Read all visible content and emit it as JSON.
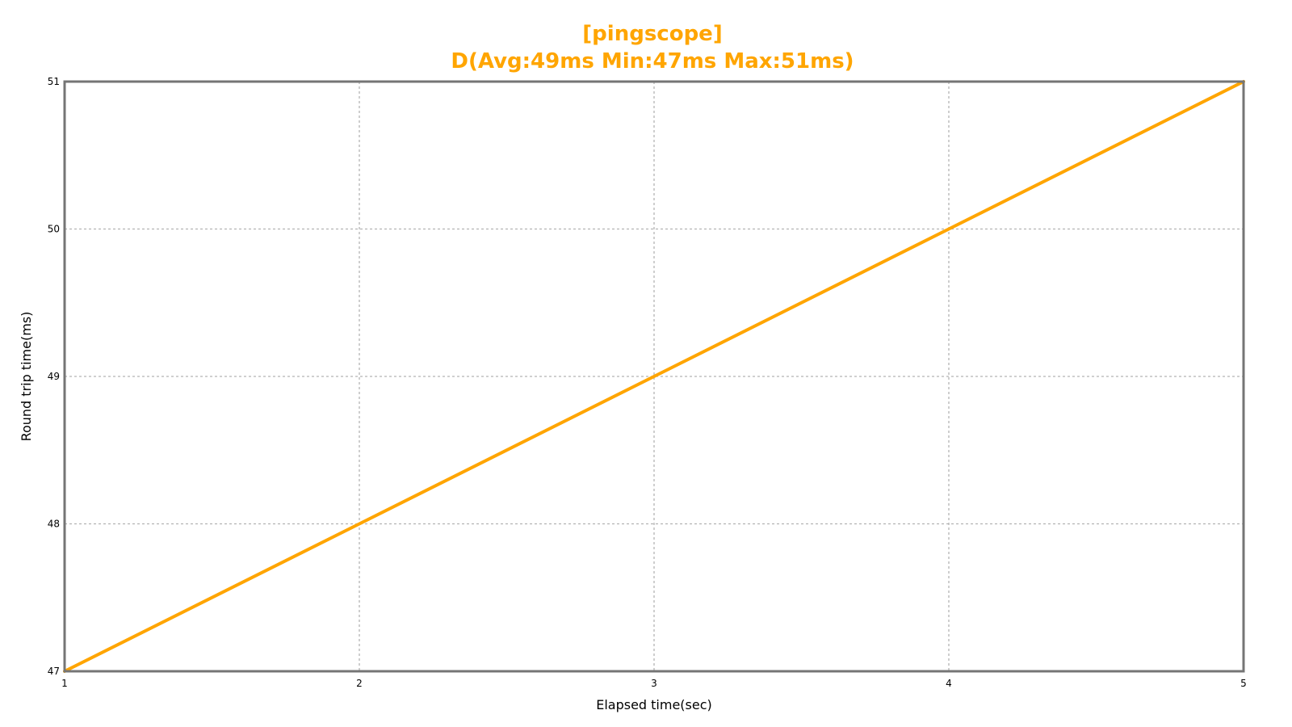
{
  "chart_data": {
    "type": "line",
    "title_line1": "[pingscope]",
    "title_line2": "D(Avg:49ms Min:47ms Max:51ms)",
    "xlabel": "Elapsed time(sec)",
    "ylabel": "Round trip time(ms)",
    "xlim": [
      1,
      5
    ],
    "ylim": [
      47,
      51
    ],
    "xticks": [
      1,
      2,
      3,
      4,
      5
    ],
    "yticks": [
      47,
      48,
      49,
      50,
      51
    ],
    "grid": true,
    "series": [
      {
        "x": [
          1,
          2,
          3,
          4,
          5
        ],
        "y": [
          47,
          48,
          49,
          50,
          51
        ]
      }
    ]
  },
  "colors": {
    "accent": "#ffa500",
    "frame": "#757575",
    "grid": "#b3b3b3"
  }
}
